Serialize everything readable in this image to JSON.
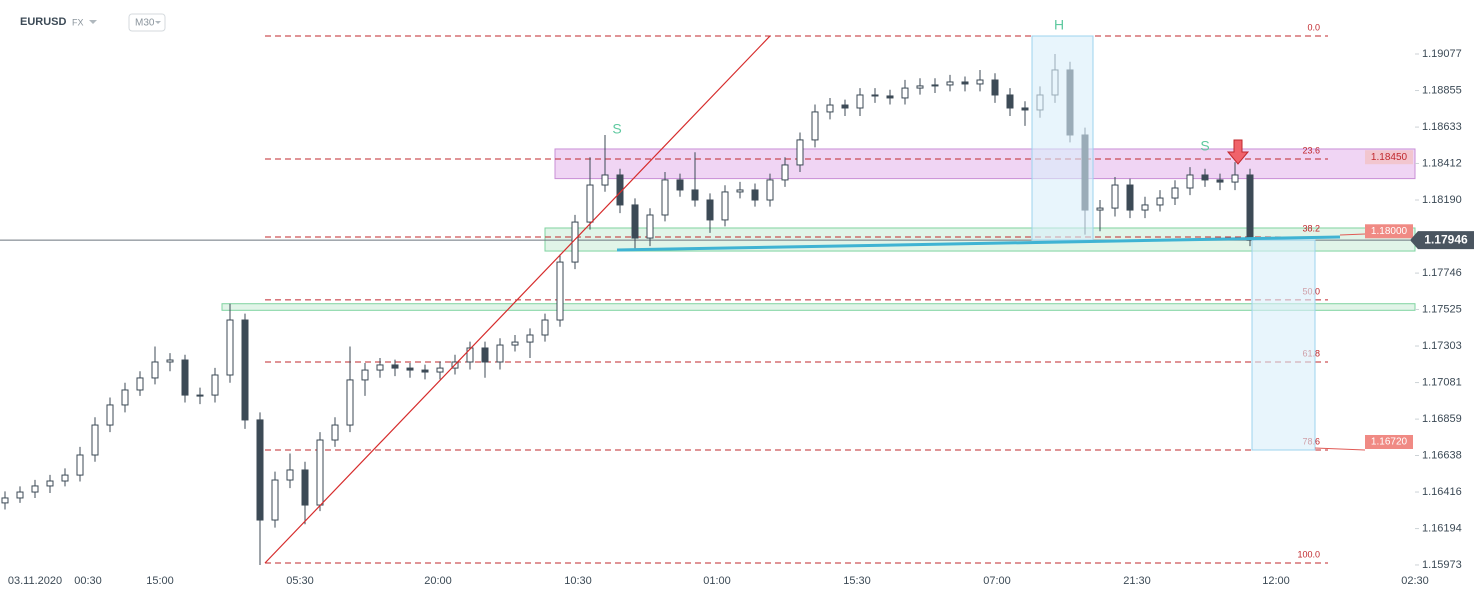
{
  "header": {
    "symbol": "EURUSD",
    "market": "FX",
    "interval": "M30"
  },
  "chart_data": {
    "type": "candlestick",
    "ylim": [
      1.15912,
      1.19405
    ],
    "yticks": [
      1.19077,
      1.18855,
      1.18633,
      1.18412,
      {
        "value": 1.1819,
        "label": "1.18190"
      },
      1.17746,
      1.17525,
      1.17303,
      1.17081,
      1.16859,
      1.16638,
      1.16416,
      1.16194,
      1.15973
    ],
    "x_labels": [
      "03.11.2020",
      "00:30",
      "15:00",
      "05:30",
      "20:00",
      "10:30",
      "01:00",
      "15:30",
      "07:00",
      "21:30",
      "12:00",
      "02:30"
    ],
    "up_color": "#ffffff",
    "down_color": "#3c4a56",
    "ohlc": [
      [
        1.1635,
        1.1642,
        1.1631,
        1.1638
      ],
      [
        1.1638,
        1.1645,
        1.1635,
        1.16416
      ],
      [
        1.16416,
        1.1649,
        1.1638,
        1.16453
      ],
      [
        1.16453,
        1.1652,
        1.1641,
        1.16483
      ],
      [
        1.16483,
        1.1656,
        1.1645,
        1.16519
      ],
      [
        1.16519,
        1.1669,
        1.1648,
        1.16641
      ],
      [
        1.16641,
        1.1687,
        1.166,
        1.16823
      ],
      [
        1.16823,
        1.1699,
        1.1678,
        1.16945
      ],
      [
        1.16945,
        1.1708,
        1.169,
        1.17036
      ],
      [
        1.17036,
        1.1715,
        1.17,
        1.17109
      ],
      [
        1.17109,
        1.173,
        1.1707,
        1.17206
      ],
      [
        1.17206,
        1.1726,
        1.1715,
        1.17218
      ],
      [
        1.17218,
        1.1725,
        1.1696,
        1.17005
      ],
      [
        1.17005,
        1.1705,
        1.1695,
        1.17005
      ],
      [
        1.17005,
        1.1717,
        1.1696,
        1.17127
      ],
      [
        1.17127,
        1.1756,
        1.1708,
        1.17461
      ],
      [
        1.17461,
        1.175,
        1.168,
        1.16854
      ],
      [
        1.16854,
        1.169,
        1.15973,
        1.16246
      ],
      [
        1.16246,
        1.1654,
        1.162,
        1.16489
      ],
      [
        1.16489,
        1.1665,
        1.1644,
        1.1655
      ],
      [
        1.1655,
        1.166,
        1.1622,
        1.16337
      ],
      [
        1.16337,
        1.1678,
        1.163,
        1.16732
      ],
      [
        1.16732,
        1.1687,
        1.1669,
        1.16823
      ],
      [
        1.16823,
        1.173,
        1.1678,
        1.17097
      ],
      [
        1.17097,
        1.172,
        1.17,
        1.17157
      ],
      [
        1.17157,
        1.1723,
        1.1711,
        1.17188
      ],
      [
        1.17188,
        1.1722,
        1.1712,
        1.17169
      ],
      [
        1.17169,
        1.172,
        1.1711,
        1.17157
      ],
      [
        1.17157,
        1.1719,
        1.171,
        1.17145
      ],
      [
        1.17145,
        1.1721,
        1.171,
        1.17169
      ],
      [
        1.17169,
        1.1725,
        1.1713,
        1.17206
      ],
      [
        1.17206,
        1.1733,
        1.1716,
        1.17291
      ],
      [
        1.17291,
        1.1733,
        1.1711,
        1.17206
      ],
      [
        1.17206,
        1.1735,
        1.1716,
        1.17309
      ],
      [
        1.17309,
        1.1737,
        1.1727,
        1.17327
      ],
      [
        1.17327,
        1.1741,
        1.1723,
        1.1737
      ],
      [
        1.1737,
        1.175,
        1.1733,
        1.17461
      ],
      [
        1.17461,
        1.1786,
        1.1742,
        1.17813
      ],
      [
        1.17813,
        1.181,
        1.1777,
        1.18056
      ],
      [
        1.18056,
        1.1845,
        1.1801,
        1.18281
      ],
      [
        1.18281,
        1.18585,
        1.1824,
        1.18342
      ],
      [
        1.18342,
        1.1838,
        1.1811,
        1.1816
      ],
      [
        1.1816,
        1.182,
        1.1788,
        1.17959
      ],
      [
        1.17959,
        1.1814,
        1.1791,
        1.18099
      ],
      [
        1.18099,
        1.1836,
        1.1806,
        1.18312
      ],
      [
        1.18312,
        1.1835,
        1.1821,
        1.18251
      ],
      [
        1.18251,
        1.1848,
        1.1815,
        1.1819
      ],
      [
        1.1819,
        1.1823,
        1.1799,
        1.18069
      ],
      [
        1.18069,
        1.1828,
        1.1803,
        1.18239
      ],
      [
        1.18239,
        1.183,
        1.182,
        1.18251
      ],
      [
        1.18251,
        1.1829,
        1.1815,
        1.1819
      ],
      [
        1.1819,
        1.1835,
        1.1815,
        1.18312
      ],
      [
        1.18312,
        1.1845,
        1.1827,
        1.18403
      ],
      [
        1.18403,
        1.186,
        1.1836,
        1.18555
      ],
      [
        1.18555,
        1.1877,
        1.1851,
        1.18725
      ],
      [
        1.18725,
        1.1881,
        1.1868,
        1.18767
      ],
      [
        1.18767,
        1.188,
        1.187,
        1.18749
      ],
      [
        1.18749,
        1.1887,
        1.187,
        1.18828
      ],
      [
        1.18828,
        1.1887,
        1.1878,
        1.18822
      ],
      [
        1.18822,
        1.1886,
        1.1877,
        1.1881
      ],
      [
        1.1881,
        1.1892,
        1.1877,
        1.1887
      ],
      [
        1.1887,
        1.1893,
        1.1883,
        1.18883
      ],
      [
        1.18883,
        1.1893,
        1.1884,
        1.18889
      ],
      [
        1.18889,
        1.1895,
        1.1885,
        1.18907
      ],
      [
        1.18907,
        1.1894,
        1.1885,
        1.18895
      ],
      [
        1.18895,
        1.1898,
        1.1885,
        1.18919
      ],
      [
        1.18919,
        1.1896,
        1.1878,
        1.18828
      ],
      [
        1.18828,
        1.1887,
        1.187,
        1.18749
      ],
      [
        1.18749,
        1.1879,
        1.1864,
        1.18737
      ],
      [
        1.18737,
        1.1888,
        1.1869,
        1.18828
      ],
      [
        1.18828,
        1.19077,
        1.1878,
        1.1898
      ],
      [
        1.1898,
        1.1903,
        1.1854,
        1.18585
      ],
      [
        1.18585,
        1.1863,
        1.1798,
        1.18129
      ],
      [
        1.18129,
        1.1819,
        1.18,
        1.18141
      ],
      [
        1.18141,
        1.1833,
        1.1809,
        1.18281
      ],
      [
        1.18281,
        1.1832,
        1.1808,
        1.18129
      ],
      [
        1.18129,
        1.1821,
        1.1808,
        1.1816
      ],
      [
        1.1816,
        1.1825,
        1.1812,
        1.18202
      ],
      [
        1.18202,
        1.1831,
        1.1816,
        1.18263
      ],
      [
        1.18263,
        1.1839,
        1.1822,
        1.18342
      ],
      [
        1.18342,
        1.1838,
        1.1827,
        1.18312
      ],
      [
        1.18312,
        1.1835,
        1.1825,
        1.18299
      ],
      [
        1.18299,
        1.1842,
        1.1825,
        1.18342
      ],
      [
        1.18342,
        1.1838,
        1.1791,
        1.17946
      ]
    ],
    "fib_levels": [
      {
        "label": "0.0",
        "price": 1.19186
      },
      {
        "label": "23.6",
        "price": 1.18439
      },
      {
        "label": "38.2",
        "price": 1.17965
      },
      {
        "label": "50.0",
        "price": 1.17583
      },
      {
        "label": "61.8",
        "price": 1.17206
      },
      {
        "label": "78.6",
        "price": 1.16671
      },
      {
        "label": "100.0",
        "price": 1.15985
      }
    ],
    "fib_color": "#c0282d",
    "price_tags": [
      {
        "value": 1.1845,
        "label": "1.18450",
        "color": "#f2c6cf",
        "text_color": "#c0282d"
      },
      {
        "value": 1.18,
        "label": "1.18000",
        "color": "#f08a84",
        "text_color": "#ffffff"
      },
      {
        "value": 1.1672,
        "label": "1.16720",
        "color": "#f08a84",
        "text_color": "#ffffff"
      }
    ],
    "current_price": {
      "value": 1.17946,
      "label": "1.17946",
      "color": "#4a5560"
    },
    "zones": [
      {
        "range": [
          1.1832,
          1.185
        ],
        "color": "#e9c3f0"
      },
      {
        "range": [
          1.1788,
          1.1802
        ],
        "color": "#d4f0de"
      },
      {
        "range": [
          1.1752,
          1.1756
        ],
        "color": "#d4f0de"
      }
    ],
    "annotations": [
      "S",
      "H",
      "S"
    ]
  }
}
